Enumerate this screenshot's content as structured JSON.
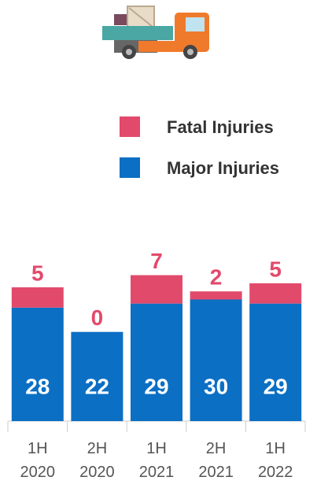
{
  "chart_data": {
    "type": "stacked_bar",
    "categories": [
      "1H 2020",
      "2H 2020",
      "1H 2021",
      "2H 2021",
      "1H 2022"
    ],
    "series": [
      {
        "name": "Major Injuries",
        "color": "#0b6fc4",
        "values": [
          28,
          22,
          29,
          30,
          29
        ]
      },
      {
        "name": "Fatal Injuries",
        "color": "#e24a6b",
        "values": [
          5,
          0,
          7,
          2,
          5
        ]
      }
    ],
    "legend": "top-right"
  }
}
